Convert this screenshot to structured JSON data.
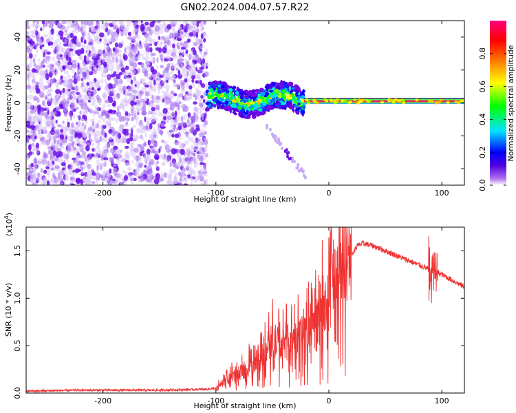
{
  "title": "GN02.2024.004.07.57.R22",
  "chart_data": [
    {
      "type": "heatmap",
      "xlabel": "Height of straight line (km)",
      "ylabel": "Frequency (Hz)",
      "xlim": [
        -268,
        120
      ],
      "ylim": [
        -50,
        50
      ],
      "x_ticks": [
        -200,
        -100,
        0,
        100
      ],
      "x_tick_labels": [
        "-200",
        "-100",
        "0",
        "100"
      ],
      "y_ticks": [
        -40,
        -20,
        0,
        20,
        40
      ],
      "y_tick_labels": [
        "-40",
        "-20",
        "0",
        "20",
        "40"
      ],
      "regions": [
        {
          "name": "noise",
          "x_range": [
            -268,
            -108
          ],
          "freq_range": [
            -50,
            50
          ],
          "amplitude": 0.08
        },
        {
          "name": "scintillation-band",
          "x_range": [
            -108,
            -22
          ],
          "freq_range": [
            -6,
            10
          ],
          "amplitude": 0.3
        },
        {
          "name": "carrier-line",
          "x_range": [
            -22,
            120
          ],
          "freq": 1,
          "amplitude": 0.95
        },
        {
          "name": "descending-trace",
          "x_range": [
            -55,
            -20
          ],
          "freq_range": [
            -45,
            -15
          ],
          "amplitude": 0.1
        }
      ],
      "colorbar": {
        "label": "Normalized spectral amplitude",
        "range": [
          0,
          1
        ],
        "ticks": [
          0.0,
          0.2,
          0.4,
          0.6,
          0.8
        ],
        "tick_labels": [
          "0.0",
          "0.2",
          "0.4",
          "0.6",
          "0.8"
        ],
        "colors": [
          "#ffffff",
          "#7000e0",
          "#0000ff",
          "#00e5ff",
          "#00ff00",
          "#ffff00",
          "#ff8000",
          "#ff0000",
          "#ff0080"
        ]
      }
    },
    {
      "type": "line",
      "xlabel": "Height of straight line (km)",
      "ylabel": "SNR (10 * v/v)",
      "multiplier_label": "(x10",
      "multiplier_exp": "4",
      "multiplier_close": ")",
      "xlim": [
        -268,
        120
      ],
      "ylim": [
        0,
        1.75
      ],
      "x_ticks": [
        -200,
        -100,
        0,
        100
      ],
      "x_tick_labels": [
        "-200",
        "-100",
        "0",
        "100"
      ],
      "y_ticks": [
        0.0,
        0.5,
        1.0,
        1.5
      ],
      "y_tick_labels": [
        "0.0",
        "0.5",
        "1.0",
        "1.5"
      ],
      "series": [
        {
          "name": "SNR",
          "color": "#ee3333",
          "x": [
            -268,
            -220,
            -150,
            -108,
            -100,
            -90,
            -80,
            -70,
            -60,
            -50,
            -40,
            -30,
            -20,
            -10,
            0,
            10,
            20,
            25,
            30,
            40,
            60,
            80,
            100,
            120
          ],
          "y": [
            0.02,
            0.03,
            0.03,
            0.04,
            0.05,
            0.15,
            0.2,
            0.28,
            0.38,
            0.55,
            0.5,
            0.55,
            0.6,
            0.75,
            1.0,
            1.2,
            1.45,
            1.55,
            1.58,
            1.55,
            1.45,
            1.35,
            1.25,
            1.12
          ]
        }
      ]
    }
  ]
}
